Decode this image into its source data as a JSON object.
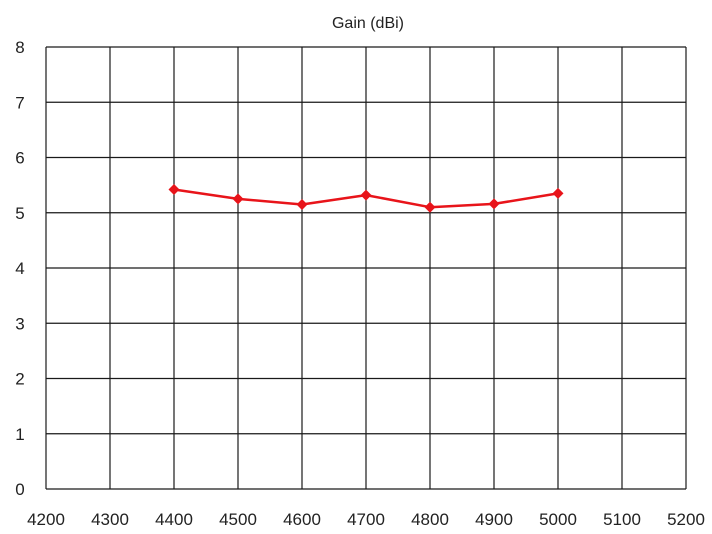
{
  "chart_data": {
    "type": "line",
    "title": "Gain (dBi)",
    "xlabel": "",
    "ylabel": "",
    "xlim": [
      4200,
      5200
    ],
    "ylim": [
      0,
      8
    ],
    "x_ticks": [
      "4200",
      "4300",
      "4400",
      "4500",
      "4600",
      "4700",
      "4800",
      "4900",
      "5000",
      "5100",
      "5200"
    ],
    "y_ticks": [
      "0",
      "1",
      "2",
      "3",
      "4",
      "5",
      "6",
      "7",
      "8"
    ],
    "grid": true,
    "legend": "none",
    "series": [
      {
        "color": "#e8141a",
        "marker": "diamond",
        "x": [
          4400,
          4500,
          4600,
          4700,
          4800,
          4900,
          5000
        ],
        "y": [
          5.42,
          5.25,
          5.15,
          5.32,
          5.1,
          5.16,
          5.35
        ]
      }
    ]
  }
}
